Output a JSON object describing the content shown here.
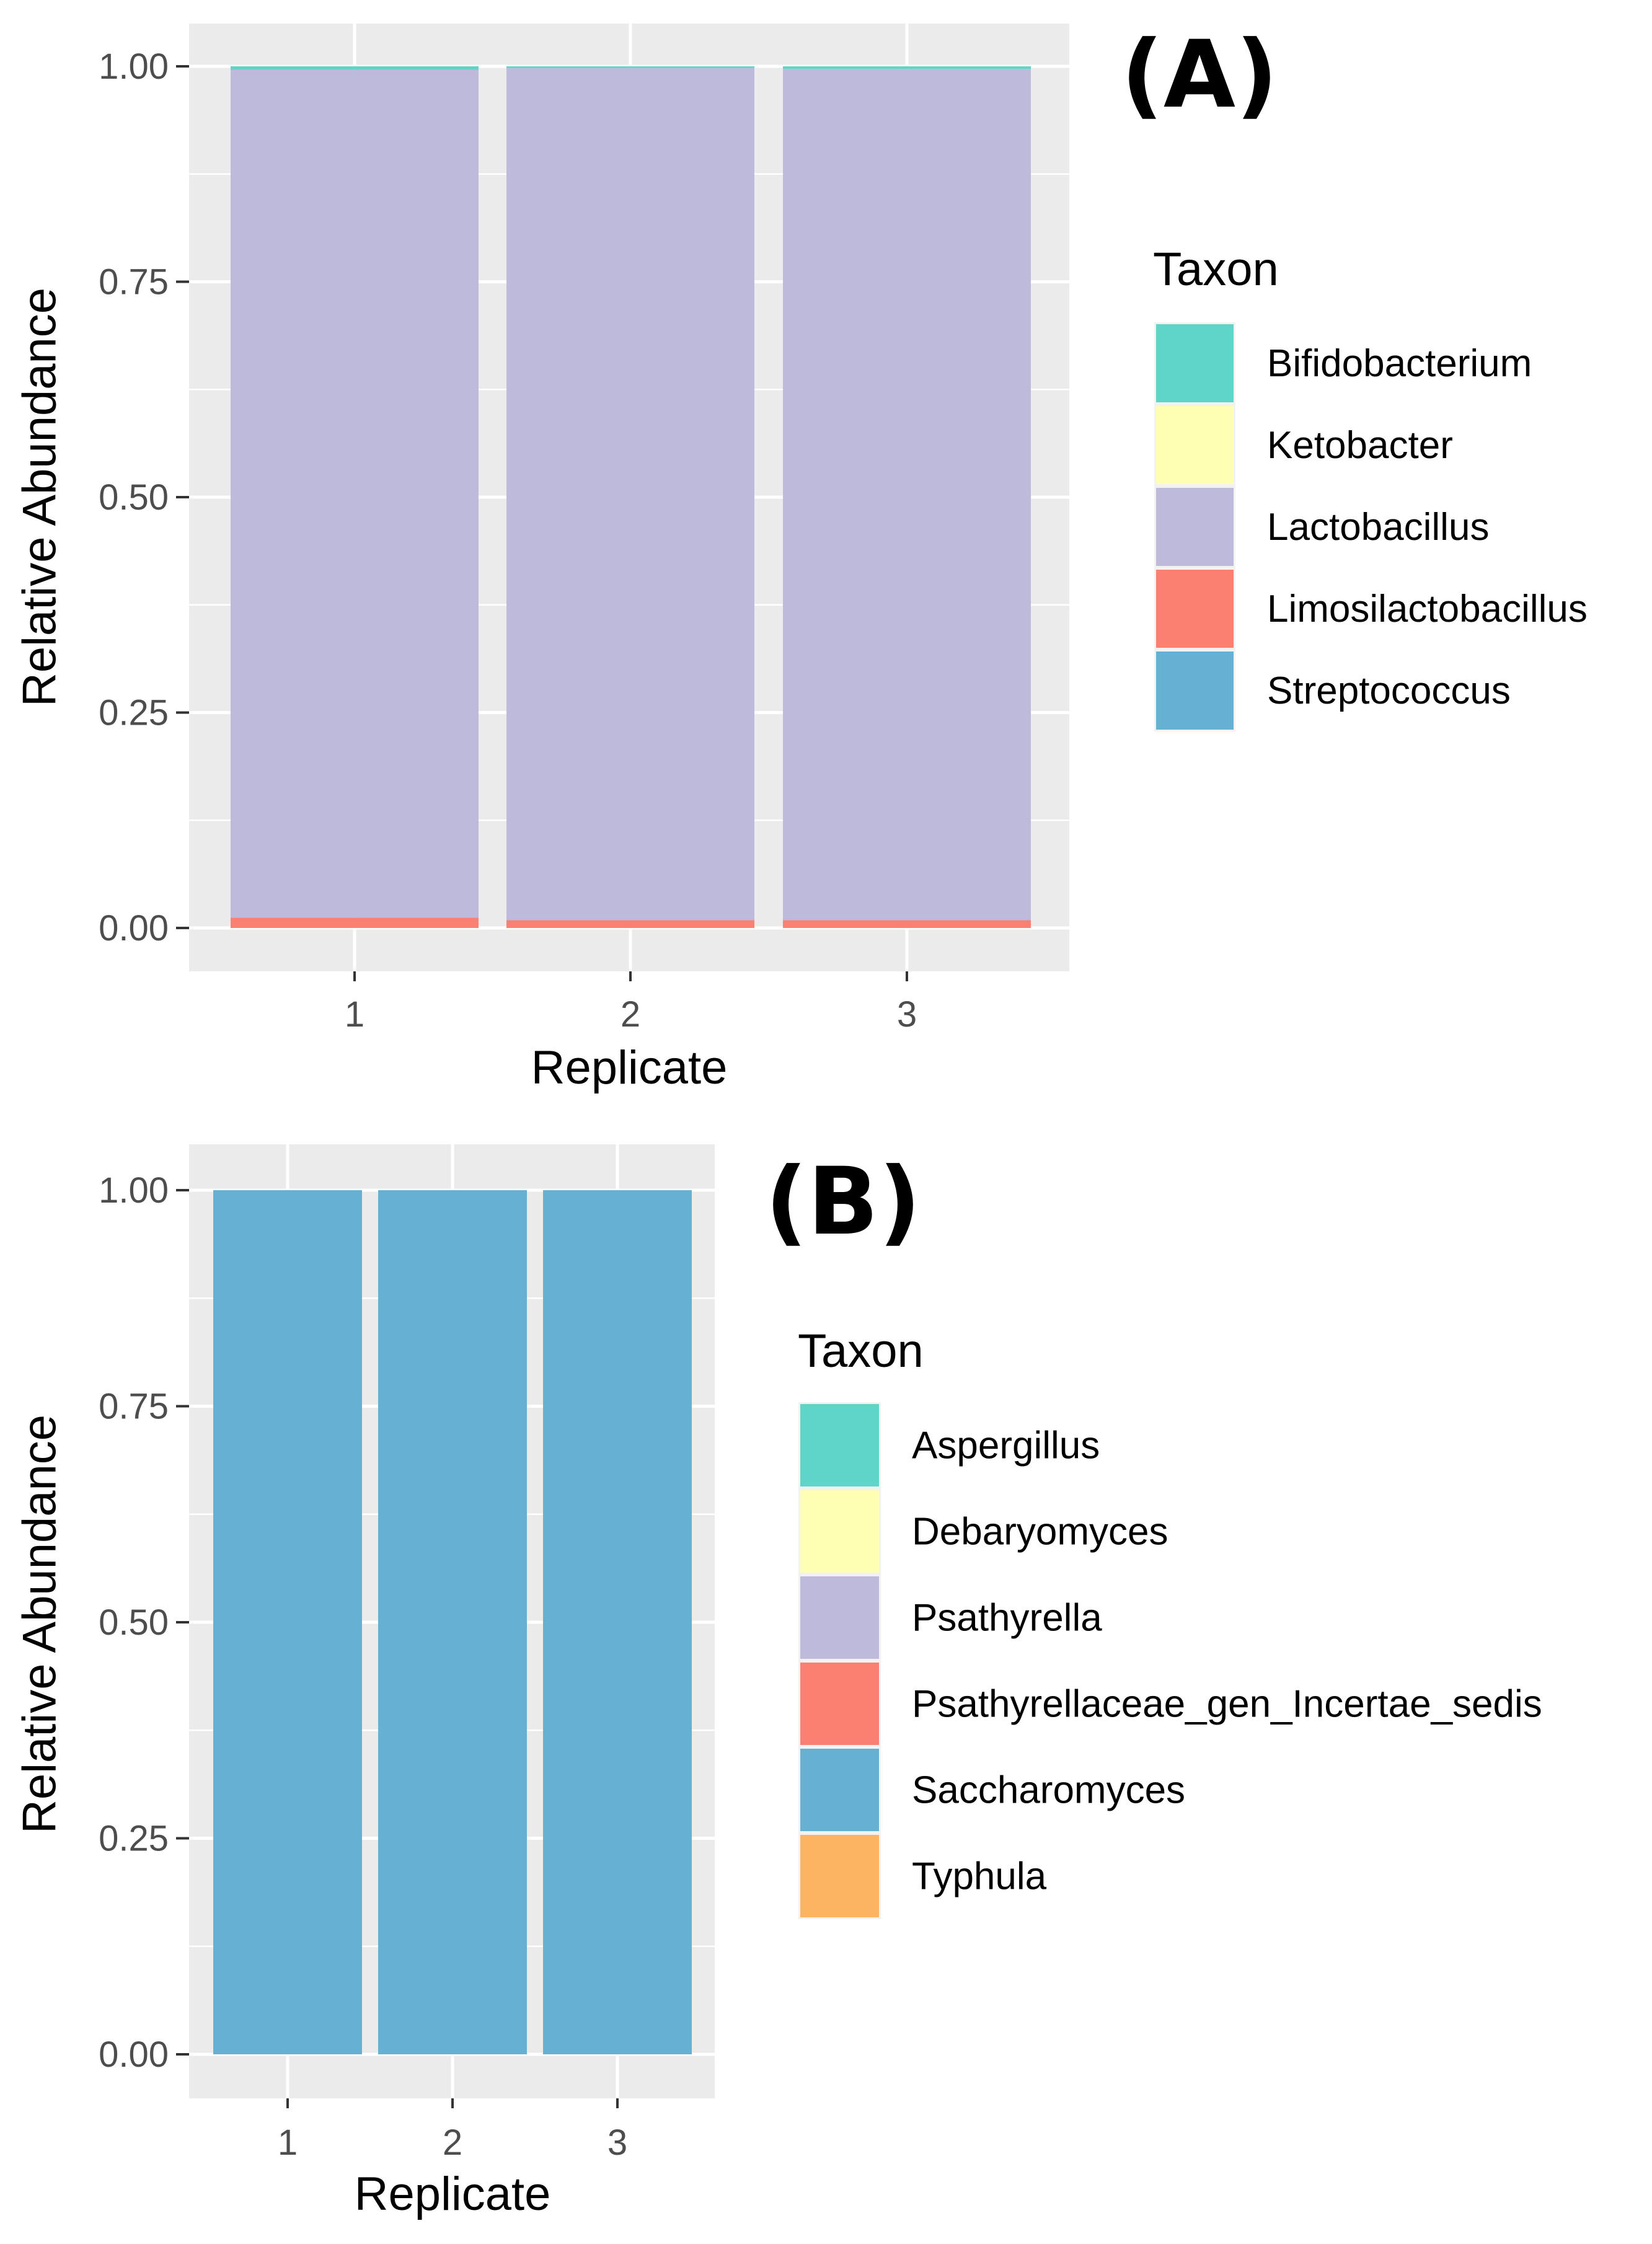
{
  "chart_data": [
    {
      "type": "bar",
      "stacked": true,
      "panel_label": "(A)",
      "title": "",
      "xlabel": "Replicate",
      "ylabel": "Relative Abundance",
      "categories": [
        "1",
        "2",
        "3"
      ],
      "ylim": [
        0,
        1
      ],
      "yticks": [
        "0.00",
        "0.25",
        "0.50",
        "0.75",
        "1.00"
      ],
      "legend_title": "Taxon",
      "legend_position": "right",
      "series": [
        {
          "name": "Bifidobacterium",
          "color": "#5fd5c8",
          "values": [
            0.004,
            0.002,
            0.003
          ]
        },
        {
          "name": "Ketobacter",
          "color": "#ffffb3",
          "values": [
            0.0,
            0.0,
            0.0
          ]
        },
        {
          "name": "Lactobacillus",
          "color": "#bebadb",
          "values": [
            0.984,
            0.989,
            0.988
          ]
        },
        {
          "name": "Limosilactobacillus",
          "color": "#fb8072",
          "values": [
            0.012,
            0.009,
            0.009
          ]
        },
        {
          "name": "Streptococcus",
          "color": "#64b1d4",
          "values": [
            0.0,
            0.0,
            0.0
          ]
        }
      ]
    },
    {
      "type": "bar",
      "stacked": true,
      "panel_label": "(B)",
      "title": "",
      "xlabel": "Replicate",
      "ylabel": "Relative Abundance",
      "categories": [
        "1",
        "2",
        "3"
      ],
      "ylim": [
        0,
        1
      ],
      "yticks": [
        "0.00",
        "0.25",
        "0.50",
        "0.75",
        "1.00"
      ],
      "legend_title": "Taxon",
      "legend_position": "right",
      "series": [
        {
          "name": "Aspergillus",
          "color": "#5fd5c8",
          "values": [
            0.0,
            0.0,
            0.0
          ]
        },
        {
          "name": "Debaryomyces",
          "color": "#ffffb3",
          "values": [
            0.0,
            0.0,
            0.0
          ]
        },
        {
          "name": "Psathyrella",
          "color": "#bebadb",
          "values": [
            0.0,
            0.0,
            0.0
          ]
        },
        {
          "name": "Psathyrellaceae_gen_Incertae_sedis",
          "color": "#fb8072",
          "values": [
            0.0,
            0.0,
            0.0
          ]
        },
        {
          "name": "Saccharomyces",
          "color": "#64b1d4",
          "values": [
            1.0,
            1.0,
            1.0
          ]
        },
        {
          "name": "Typhula",
          "color": "#fdb462",
          "values": [
            0.0,
            0.0,
            0.0
          ]
        }
      ]
    }
  ]
}
